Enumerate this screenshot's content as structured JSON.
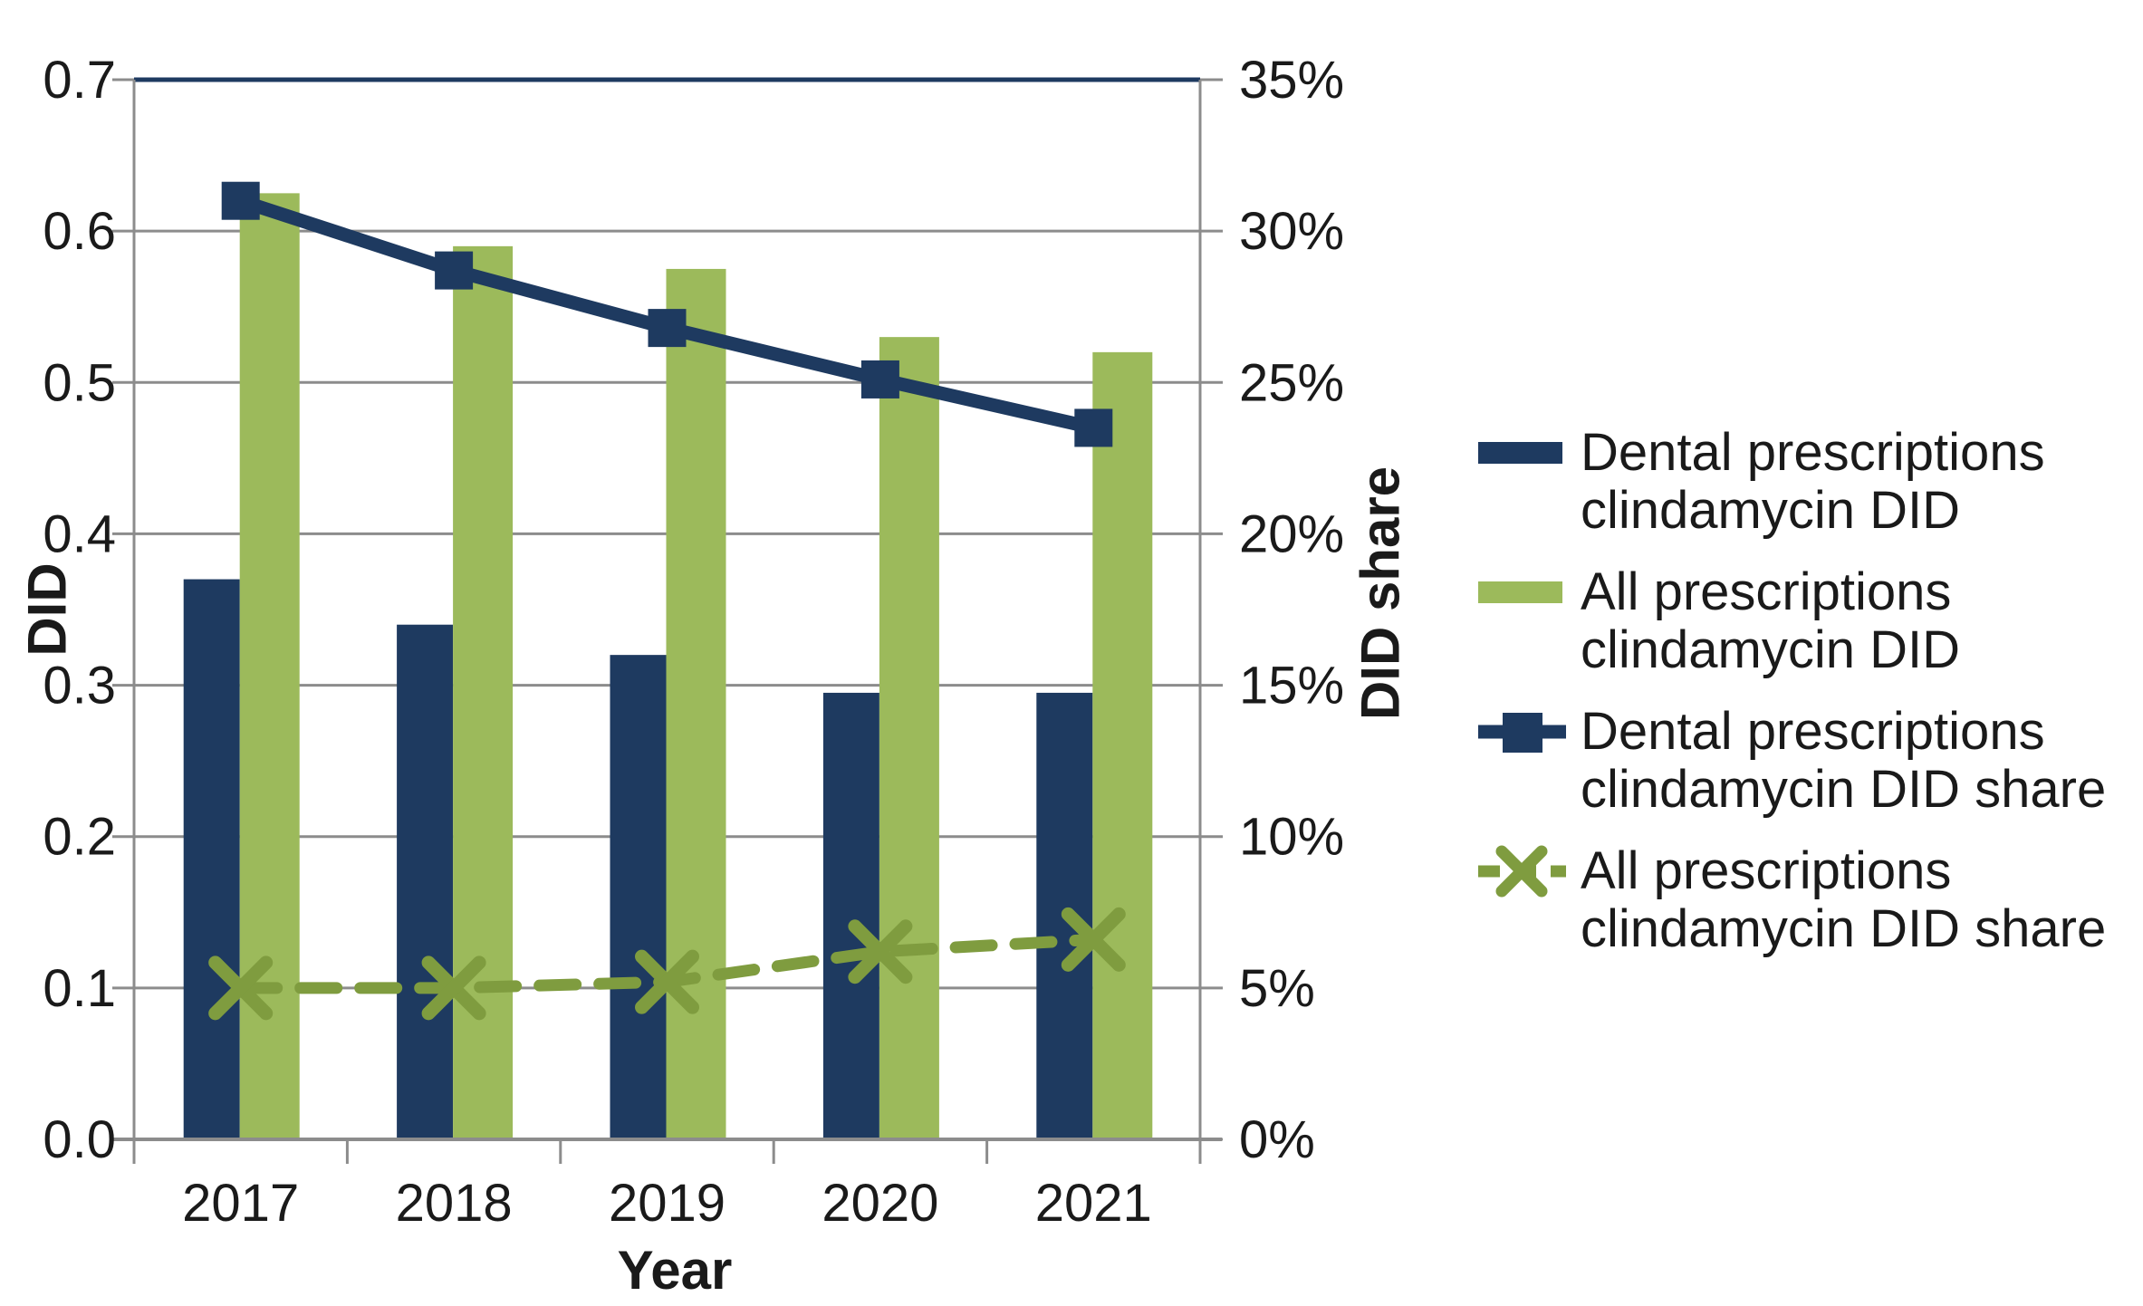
{
  "chart_data": {
    "type": "combo-bar-line",
    "title": "",
    "categories": [
      "2017",
      "2018",
      "2019",
      "2020",
      "2021"
    ],
    "x_axis": {
      "title": "Year"
    },
    "left_axis": {
      "title": "DID",
      "min": 0,
      "max": 0.7,
      "step": 0.1,
      "tick_labels": [
        "0.0",
        "0.1",
        "0.2",
        "0.3",
        "0.4",
        "0.5",
        "0.6",
        "0.7"
      ]
    },
    "right_axis": {
      "title": "DID share",
      "min": 0,
      "max": 35,
      "step": 5,
      "tick_labels": [
        "0%",
        "5%",
        "10%",
        "15%",
        "20%",
        "25%",
        "30%",
        "35%"
      ]
    },
    "grid": true,
    "legend_position": "right",
    "series": [
      {
        "name": "Dental prescriptions clindamycin DID",
        "legend_lines": [
          "Dental prescriptions",
          "clindamycin DID"
        ],
        "type": "bar",
        "axis": "left",
        "color": "#1e3a60",
        "values": [
          0.37,
          0.34,
          0.32,
          0.295,
          0.295
        ]
      },
      {
        "name": "All prescriptions clindamycin DID",
        "legend_lines": [
          "All prescriptions",
          "clindamycin DID"
        ],
        "type": "bar",
        "axis": "left",
        "color": "#9cba5b",
        "values": [
          0.625,
          0.59,
          0.575,
          0.53,
          0.52
        ]
      },
      {
        "name": "Dental prescriptions clindamycin DID share",
        "legend_lines": [
          "Dental prescriptions",
          "clindamycin DID share"
        ],
        "type": "line",
        "axis": "right",
        "color": "#1e3a60",
        "marker": "square",
        "line_style": "solid",
        "values": [
          31.0,
          28.7,
          26.8,
          25.1,
          23.5
        ]
      },
      {
        "name": "All prescriptions clindamycin DID share",
        "legend_lines": [
          "All prescriptions",
          "clindamycin DID share"
        ],
        "type": "line",
        "axis": "right",
        "color": "#7f9c3f",
        "marker": "x",
        "line_style": "dashed",
        "values": [
          5.0,
          5.0,
          5.2,
          6.2,
          6.6
        ]
      }
    ],
    "colors": {
      "grid": "#8c8c8c",
      "axis": "#8c8c8c",
      "plot_top_border": "#1e3a60",
      "text": "#1a1a1a",
      "background": "#ffffff"
    }
  }
}
